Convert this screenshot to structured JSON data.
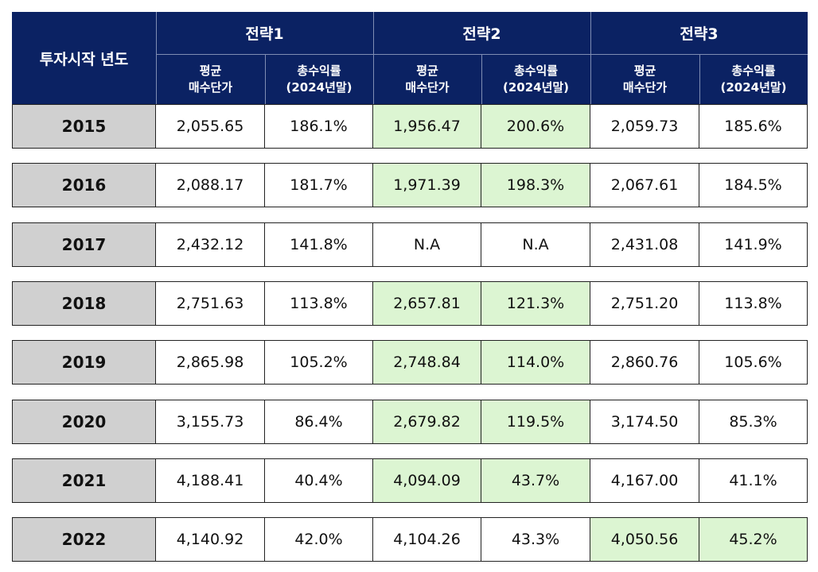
{
  "colors": {
    "header_bg": "#0b2263",
    "year_bg": "#d0d0d0",
    "highlight_bg": "#dcf5d2",
    "text": "#111111"
  },
  "header": {
    "year_col": "투자시작 년도",
    "strategies": [
      "전략1",
      "전략2",
      "전략3"
    ],
    "sub_price": "평균\n매수단가",
    "sub_return": "총수익률\n(2024년말)"
  },
  "chart_data": {
    "type": "table",
    "columns": [
      "투자시작 년도",
      "전략1 평균 매수단가",
      "전략1 총수익률(2024년말)",
      "전략2 평균 매수단가",
      "전략2 총수익률(2024년말)",
      "전략3 평균 매수단가",
      "전략3 총수익률(2024년말)"
    ],
    "rows": [
      {
        "year": "2015",
        "cells": [
          "2,055.65",
          "186.1%",
          "1,956.47",
          "200.6%",
          "2,059.73",
          "185.6%"
        ],
        "highlight": 1
      },
      {
        "year": "2016",
        "cells": [
          "2,088.17",
          "181.7%",
          "1,971.39",
          "198.3%",
          "2,067.61",
          "184.5%"
        ],
        "highlight": 1
      },
      {
        "year": "2017",
        "cells": [
          "2,432.12",
          "141.8%",
          "N.A",
          "N.A",
          "2,431.08",
          "141.9%"
        ],
        "highlight": -1
      },
      {
        "year": "2018",
        "cells": [
          "2,751.63",
          "113.8%",
          "2,657.81",
          "121.3%",
          "2,751.20",
          "113.8%"
        ],
        "highlight": 1
      },
      {
        "year": "2019",
        "cells": [
          "2,865.98",
          "105.2%",
          "2,748.84",
          "114.0%",
          "2,860.76",
          "105.6%"
        ],
        "highlight": 1
      },
      {
        "year": "2020",
        "cells": [
          "3,155.73",
          "86.4%",
          "2,679.82",
          "119.5%",
          "3,174.50",
          "85.3%"
        ],
        "highlight": 1
      },
      {
        "year": "2021",
        "cells": [
          "4,188.41",
          "40.4%",
          "4,094.09",
          "43.7%",
          "4,167.00",
          "41.1%"
        ],
        "highlight": 1
      },
      {
        "year": "2022",
        "cells": [
          "4,140.92",
          "42.0%",
          "4,104.26",
          "43.3%",
          "4,050.56",
          "45.2%"
        ],
        "highlight": 2
      }
    ]
  }
}
